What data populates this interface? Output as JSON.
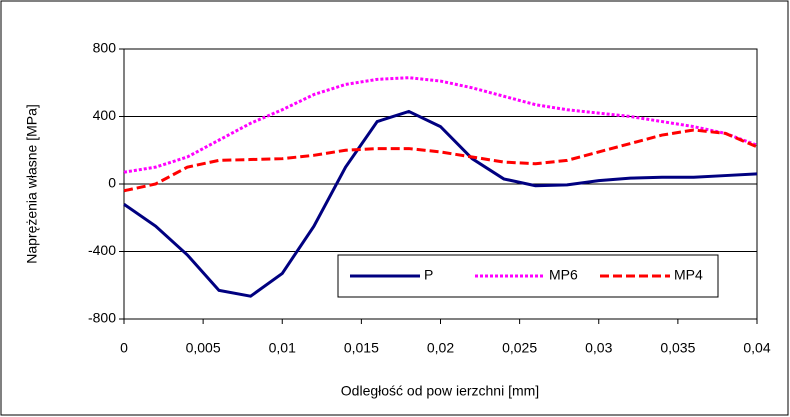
{
  "chart_data": {
    "type": "line",
    "x_label": "Odległość od pow ierzchni [mm]",
    "y_label": "Naprężenia własne [MPa]",
    "x": [
      0,
      0.002,
      0.004,
      0.006,
      0.008,
      0.01,
      0.012,
      0.014,
      0.016,
      0.018,
      0.02,
      0.022,
      0.024,
      0.026,
      0.028,
      0.03,
      0.032,
      0.034,
      0.036,
      0.038,
      0.04
    ],
    "series": [
      {
        "name": "P",
        "color": "#000080",
        "style": "solid",
        "values": [
          -120,
          -250,
          -420,
          -630,
          -665,
          -530,
          -250,
          100,
          370,
          430,
          340,
          150,
          30,
          -10,
          -5,
          20,
          35,
          40,
          40,
          50,
          60
        ]
      },
      {
        "name": "MP6",
        "color": "#ff00ff",
        "style": "dotted",
        "values": [
          70,
          100,
          160,
          260,
          360,
          440,
          530,
          590,
          620,
          630,
          610,
          570,
          520,
          470,
          440,
          420,
          400,
          370,
          340,
          300,
          230
        ]
      },
      {
        "name": "MP4",
        "color": "#ff0000",
        "style": "dashed",
        "values": [
          -40,
          0,
          100,
          140,
          145,
          150,
          170,
          200,
          210,
          210,
          190,
          160,
          130,
          120,
          140,
          190,
          240,
          290,
          320,
          300,
          220
        ]
      }
    ],
    "xlim": [
      0,
      0.04
    ],
    "xticks": [
      0,
      {
        "value": 0.005,
        "label": "0,005"
      },
      {
        "value": 0.01,
        "label": "0,01"
      },
      {
        "value": 0.015,
        "label": "0,015"
      },
      {
        "value": 0.02,
        "label": "0,02"
      },
      {
        "value": 0.025,
        "label": "0,025"
      },
      {
        "value": 0.03,
        "label": "0,03"
      },
      {
        "value": 0.035,
        "label": "0,035"
      },
      {
        "value": 0.04,
        "label": "0,04"
      }
    ],
    "ylim": [
      -800,
      800
    ],
    "yticks": [
      -800,
      -400,
      0,
      400,
      800
    ],
    "grid": true,
    "legend": "lower right"
  }
}
